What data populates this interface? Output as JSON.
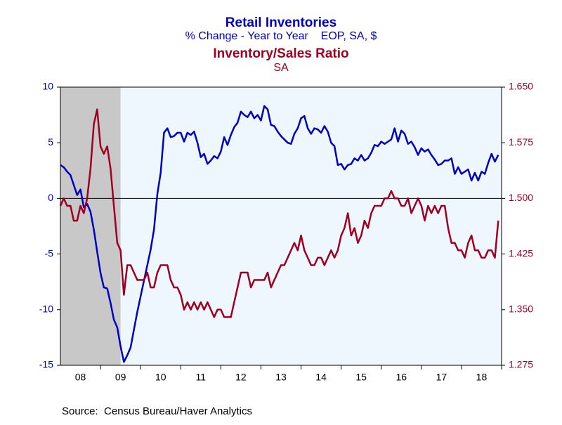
{
  "chart_data": {
    "type": "line",
    "title": "Retail Inventories",
    "subtitle": "% Change - Year to Year    EOP, SA, $",
    "title2": "Inventory/Sales Ratio",
    "subtitle2": "SA",
    "source": "Source:  Census Bureau/Haver Analytics",
    "x": [
      2008,
      2008.083,
      2008.167,
      2008.25,
      2008.333,
      2008.417,
      2008.5,
      2008.583,
      2008.667,
      2008.75,
      2008.833,
      2008.917,
      2009,
      2009.083,
      2009.167,
      2009.25,
      2009.333,
      2009.417,
      2009.5,
      2009.583,
      2009.667,
      2009.75,
      2009.833,
      2009.917,
      2010,
      2010.083,
      2010.167,
      2010.25,
      2010.333,
      2010.417,
      2010.5,
      2010.583,
      2010.667,
      2010.75,
      2010.833,
      2010.917,
      2011,
      2011.083,
      2011.167,
      2011.25,
      2011.333,
      2011.417,
      2011.5,
      2011.583,
      2011.667,
      2011.75,
      2011.833,
      2011.917,
      2012,
      2012.083,
      2012.167,
      2012.25,
      2012.333,
      2012.417,
      2012.5,
      2012.583,
      2012.667,
      2012.75,
      2012.833,
      2012.917,
      2013,
      2013.083,
      2013.167,
      2013.25,
      2013.333,
      2013.417,
      2013.5,
      2013.583,
      2013.667,
      2013.75,
      2013.833,
      2013.917,
      2014,
      2014.083,
      2014.167,
      2014.25,
      2014.333,
      2014.417,
      2014.5,
      2014.583,
      2014.667,
      2014.75,
      2014.833,
      2014.917,
      2015,
      2015.083,
      2015.167,
      2015.25,
      2015.333,
      2015.417,
      2015.5,
      2015.583,
      2015.667,
      2015.75,
      2015.833,
      2015.917,
      2016,
      2016.083,
      2016.167,
      2016.25,
      2016.333,
      2016.417,
      2016.5,
      2016.583,
      2016.667,
      2016.75,
      2016.833,
      2016.917,
      2017,
      2017.083,
      2017.167,
      2017.25,
      2017.333,
      2017.417,
      2017.5,
      2017.583,
      2017.667,
      2017.75,
      2017.833,
      2017.917,
      2018,
      2018.083,
      2018.167,
      2018.25,
      2018.333,
      2018.417,
      2018.5,
      2018.583,
      2018.667,
      2018.75,
      2018.833,
      2018.917
    ],
    "series": [
      {
        "name": "Retail Inventories",
        "color": "#0000c0",
        "axis": "y",
        "values": [
          3.0,
          2.8,
          2.4,
          2.1,
          1.2,
          0.3,
          0.8,
          -0.8,
          -0.5,
          -1.2,
          -2.8,
          -4.8,
          -6.7,
          -8.0,
          -8.1,
          -9.4,
          -10.9,
          -11.6,
          -13.3,
          -14.7,
          -14.1,
          -13.4,
          -11.8,
          -10.2,
          -8.8,
          -7.4,
          -6.0,
          -4.6,
          -2.8,
          0.4,
          2.3,
          5.9,
          6.3,
          5.5,
          5.6,
          5.9,
          5.9,
          5.1,
          5.9,
          5.7,
          6.0,
          5.0,
          3.7,
          4.0,
          3.1,
          3.4,
          3.8,
          3.6,
          4.2,
          5.5,
          4.8,
          5.7,
          6.4,
          6.8,
          7.8,
          7.5,
          7.3,
          7.8,
          7.2,
          7.5,
          7.0,
          8.3,
          8.0,
          6.6,
          6.5,
          6.0,
          5.6,
          5.3,
          5.0,
          4.9,
          5.8,
          6.3,
          7.2,
          7.4,
          6.3,
          5.8,
          6.3,
          6.2,
          5.9,
          6.5,
          6.0,
          5.0,
          4.7,
          3.0,
          3.1,
          2.6,
          3.0,
          3.1,
          3.6,
          3.4,
          3.9,
          3.4,
          3.6,
          4.1,
          4.8,
          4.7,
          5.1,
          4.9,
          5.1,
          5.3,
          6.3,
          5.1,
          6.1,
          5.8,
          4.9,
          5.1,
          4.6,
          3.9,
          4.5,
          4.2,
          4.4,
          3.9,
          3.5,
          3.0,
          3.1,
          3.4,
          3.4,
          3.6,
          2.2,
          2.8,
          2.2,
          2.4,
          2.6,
          1.6,
          2.3,
          1.6,
          2.4,
          2.2,
          3.2,
          4.0,
          3.3,
          3.9
        ]
      },
      {
        "name": "Inventory/Sales Ratio",
        "color": "#a00020",
        "axis": "y2",
        "values": [
          1.49,
          1.5,
          1.49,
          1.49,
          1.47,
          1.47,
          1.49,
          1.48,
          1.5,
          1.54,
          1.6,
          1.62,
          1.57,
          1.56,
          1.57,
          1.54,
          1.49,
          1.44,
          1.43,
          1.37,
          1.41,
          1.41,
          1.4,
          1.39,
          1.39,
          1.39,
          1.4,
          1.38,
          1.38,
          1.4,
          1.41,
          1.41,
          1.41,
          1.39,
          1.38,
          1.38,
          1.37,
          1.35,
          1.36,
          1.35,
          1.36,
          1.35,
          1.36,
          1.35,
          1.36,
          1.35,
          1.34,
          1.35,
          1.35,
          1.34,
          1.34,
          1.34,
          1.36,
          1.38,
          1.4,
          1.4,
          1.4,
          1.38,
          1.39,
          1.39,
          1.39,
          1.39,
          1.4,
          1.38,
          1.39,
          1.4,
          1.41,
          1.41,
          1.42,
          1.43,
          1.44,
          1.43,
          1.45,
          1.43,
          1.42,
          1.41,
          1.41,
          1.42,
          1.42,
          1.41,
          1.42,
          1.43,
          1.42,
          1.43,
          1.45,
          1.46,
          1.48,
          1.45,
          1.46,
          1.44,
          1.45,
          1.47,
          1.46,
          1.48,
          1.49,
          1.49,
          1.49,
          1.5,
          1.5,
          1.51,
          1.5,
          1.5,
          1.49,
          1.49,
          1.5,
          1.48,
          1.49,
          1.5,
          1.49,
          1.47,
          1.49,
          1.48,
          1.49,
          1.48,
          1.49,
          1.49,
          1.46,
          1.44,
          1.44,
          1.43,
          1.43,
          1.42,
          1.44,
          1.45,
          1.43,
          1.43,
          1.42,
          1.42,
          1.43,
          1.43,
          1.42,
          1.47
        ]
      }
    ],
    "xlim": [
      2008,
      2019
    ],
    "xticks": [
      {
        "value": 2008.5,
        "label": "08"
      },
      {
        "value": 2009.5,
        "label": "09"
      },
      {
        "value": 2010.5,
        "label": "10"
      },
      {
        "value": 2011.5,
        "label": "11"
      },
      {
        "value": 2012.5,
        "label": "12"
      },
      {
        "value": 2013.5,
        "label": "13"
      },
      {
        "value": 2014.5,
        "label": "14"
      },
      {
        "value": 2015.5,
        "label": "15"
      },
      {
        "value": 2016.5,
        "label": "16"
      },
      {
        "value": 2017.5,
        "label": "17"
      },
      {
        "value": 2018.5,
        "label": "18"
      }
    ],
    "ylim": [
      -15,
      10
    ],
    "yticks": [
      -15,
      -10,
      -5,
      0,
      5,
      10
    ],
    "y2lim": [
      1.275,
      1.65
    ],
    "y2ticks": [
      1.275,
      {
        "value": 1.35,
        "label": "1.350"
      },
      1.425,
      {
        "value": 1.5,
        "label": "1.500"
      },
      1.575,
      {
        "value": 1.65,
        "label": "1.650"
      }
    ],
    "reference_line": 0,
    "shaded": [
      [
        2008,
        2009.5
      ]
    ]
  }
}
